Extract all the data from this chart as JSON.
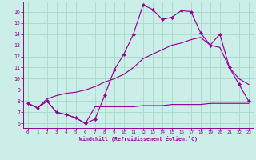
{
  "xlabel": "Windchill (Refroidissement éolien,°C)",
  "bg_color": "#cceee8",
  "grid_color": "#aaddcc",
  "line_color": "#990099",
  "x_ticks": [
    0,
    1,
    2,
    3,
    4,
    5,
    6,
    7,
    8,
    9,
    10,
    11,
    12,
    13,
    14,
    15,
    16,
    17,
    18,
    19,
    20,
    21,
    22,
    23
  ],
  "y_ticks": [
    6,
    7,
    8,
    9,
    10,
    11,
    12,
    13,
    14,
    15,
    16
  ],
  "ylim": [
    5.6,
    16.9
  ],
  "xlim": [
    -0.5,
    23.5
  ],
  "line1_x": [
    0,
    1,
    2,
    3,
    4,
    5,
    6,
    7,
    8,
    9,
    10,
    11,
    12,
    13,
    14,
    15,
    16,
    17,
    18,
    19,
    20,
    21,
    22,
    23
  ],
  "line1_y": [
    7.8,
    7.4,
    8.0,
    7.0,
    6.8,
    6.5,
    6.0,
    6.4,
    8.5,
    10.8,
    12.2,
    14.0,
    16.6,
    16.2,
    15.3,
    15.5,
    16.1,
    16.0,
    14.1,
    13.0,
    14.0,
    11.0,
    9.5,
    8.0
  ],
  "line2_x": [
    0,
    1,
    2,
    3,
    4,
    5,
    6,
    7,
    8,
    9,
    10,
    11,
    12,
    13,
    14,
    15,
    16,
    17,
    18,
    19,
    20,
    21,
    22,
    23
  ],
  "line2_y": [
    7.8,
    7.4,
    8.2,
    8.5,
    8.7,
    8.8,
    9.0,
    9.3,
    9.7,
    10.0,
    10.4,
    11.0,
    11.8,
    12.2,
    12.6,
    13.0,
    13.2,
    13.5,
    13.7,
    13.0,
    12.8,
    11.0,
    10.0,
    9.5
  ],
  "line3_x": [
    0,
    1,
    2,
    3,
    4,
    5,
    6,
    7,
    8,
    9,
    10,
    11,
    12,
    13,
    14,
    15,
    16,
    17,
    18,
    19,
    20,
    21,
    22,
    23
  ],
  "line3_y": [
    7.8,
    7.4,
    8.0,
    7.0,
    6.8,
    6.5,
    6.0,
    7.5,
    7.5,
    7.5,
    7.5,
    7.5,
    7.6,
    7.6,
    7.6,
    7.7,
    7.7,
    7.7,
    7.7,
    7.8,
    7.8,
    7.8,
    7.8,
    7.8
  ]
}
